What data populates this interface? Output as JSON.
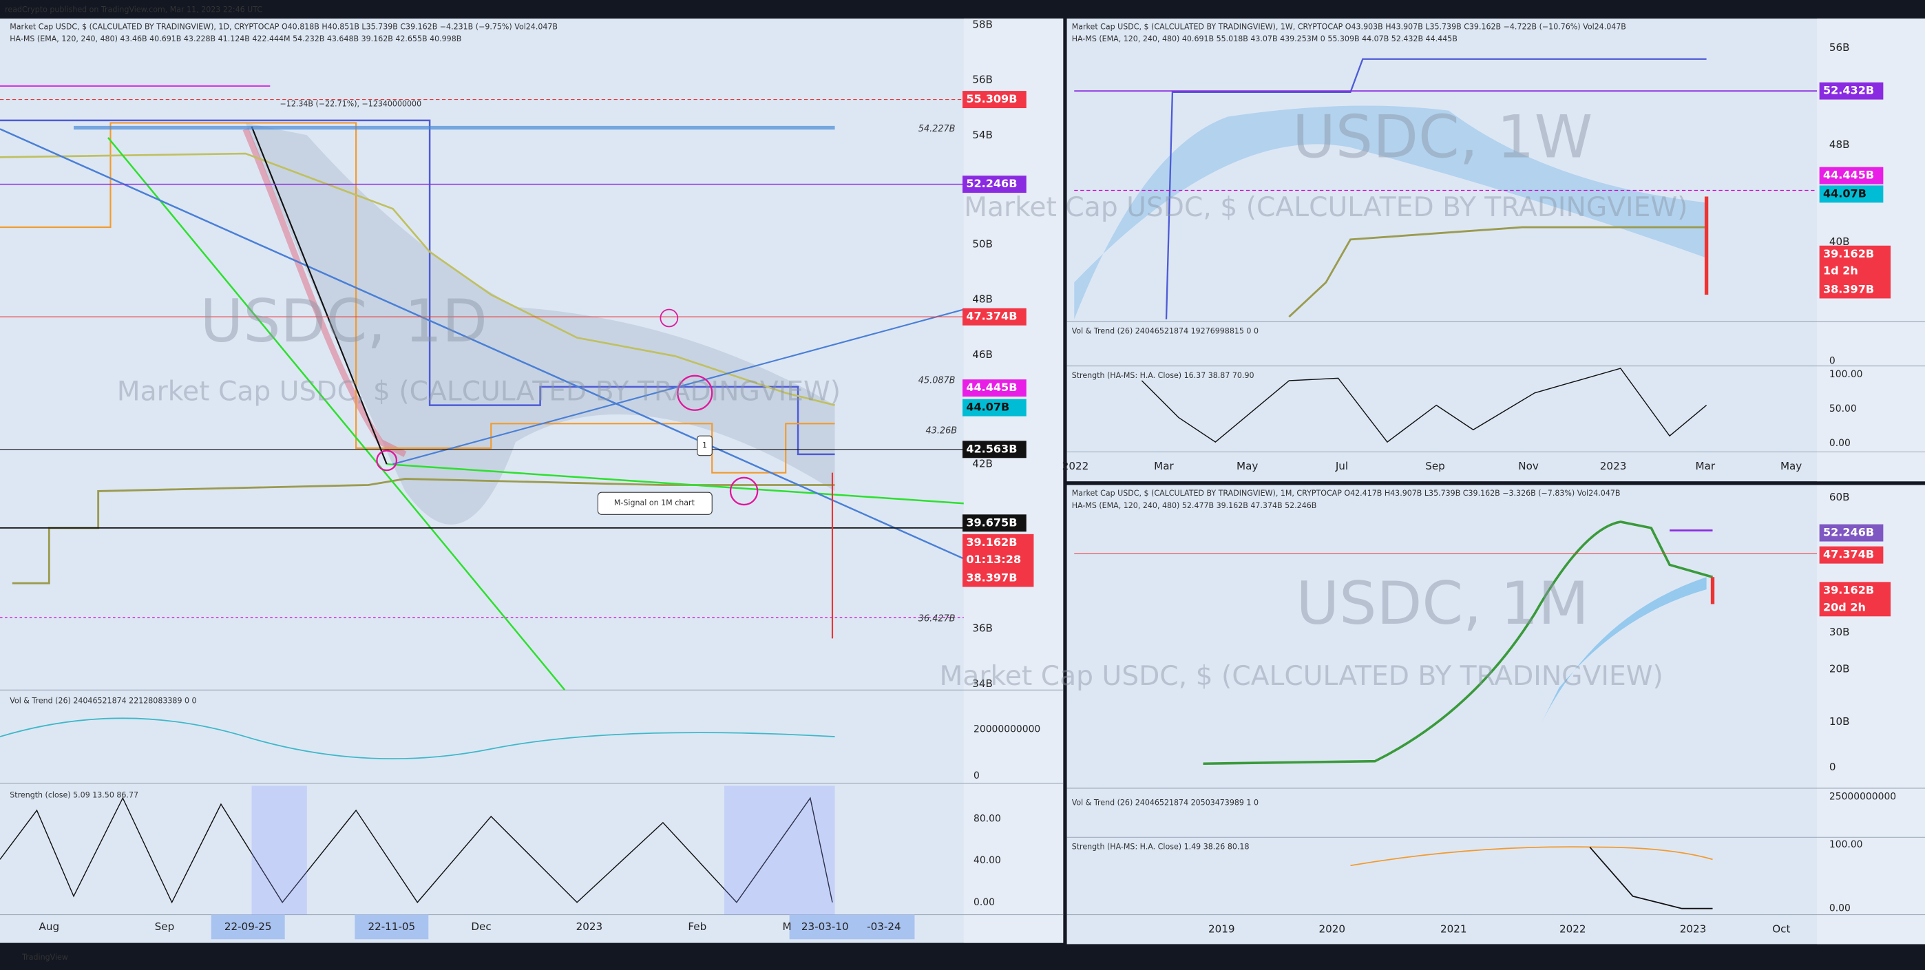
{
  "header": {
    "title": "readCrypto published on TradingView.com, Mar 11, 2023 22:46 UTC"
  },
  "left": {
    "legend": [
      "Market Cap USDC, $ (CALCULATED BY TRADINGVIEW), 1D, CRYPTOCAP  O40.818B  H40.851B  L35.739B  C39.162B  −4.231B (−9.75%)  Vol24.047B",
      "HA-MS (EMA, 120, 240, 480)  43.46B  40.691B  43.228B  41.124B  422.444M  54.232B  43.648B  39.162B  42.655B  40.998B"
    ],
    "watermark": [
      "USDC, 1D",
      "Market Cap USDC, $ (CALCULATED BY TRADINGVIEW)"
    ],
    "price_axis": [
      "58B",
      "56B",
      "54B",
      "50B",
      "48B",
      "46B",
      "42B",
      "36B",
      "34B"
    ],
    "tags": [
      "55.309B",
      "52.246B",
      "47.374B",
      "44.445B",
      "44.07B",
      "42.563B",
      "39.675B"
    ],
    "last_tag": [
      "39.162B",
      "01:13:28",
      "38.397B"
    ],
    "annotations": [
      "54.227B",
      "45.087B",
      "43.26B",
      "36.427B",
      "−12.34B (−22.71%), −12340000000",
      "M-Signal on 1M chart",
      "1"
    ],
    "vol": {
      "legend": "Vol & Trend (26)  24046521874  22128083389  0  0",
      "axis": [
        "20000000000",
        "0"
      ]
    },
    "strength": {
      "legend": "Strength (close)  5.09  13.50  86.77",
      "axis": [
        "80.00",
        "40.00",
        "0.00"
      ]
    },
    "time_axis": [
      "Aug",
      "Sep",
      "22-09-25",
      "22-11-05",
      "Dec",
      "2023",
      "Feb",
      "M",
      "23-03-10",
      "-03-24"
    ]
  },
  "right_top": {
    "legend": [
      "Market Cap USDC, $ (CALCULATED BY TRADINGVIEW), 1W, CRYPTOCAP  O43.903B  H43.907B  L35.739B  C39.162B  −4.722B (−10.76%)  Vol24.047B",
      "HA-MS (EMA, 120, 240, 480)  40.691B  55.018B  43.07B  439.253M  0  55.309B  44.07B  52.432B  44.445B"
    ],
    "watermark": [
      "USDC, 1W",
      "Market Cap USDC, $ (CALCULATED BY TRADINGVIEW)"
    ],
    "price_axis": [
      "56B",
      "48B",
      "40B"
    ],
    "tags": [
      "52.432B",
      "44.445B",
      "44.07B"
    ],
    "last_tag": [
      "39.162B",
      "1d 2h",
      "38.397B"
    ],
    "vol": {
      "legend": "Vol & Trend (26)  24046521874  19276998815  0  0",
      "axis": [
        "0"
      ]
    },
    "strength": {
      "legend": "Strength (HA-MS: H.A. Close)  16.37  38.87  70.90",
      "axis": [
        "100.00",
        "50.00",
        "0.00"
      ]
    },
    "time_axis": [
      "2022",
      "Mar",
      "May",
      "Jul",
      "Sep",
      "Nov",
      "2023",
      "Mar",
      "May"
    ]
  },
  "right_bottom": {
    "legend": [
      "Market Cap USDC, $ (CALCULATED BY TRADINGVIEW), 1M, CRYPTOCAP  O42.417B  H43.907B  L35.739B  C39.162B  −3.326B (−7.83%)  Vol24.047B",
      "HA-MS (EMA, 120, 240, 480)  52.477B  39.162B  47.374B  52.246B"
    ],
    "watermark": [
      "USDC, 1M",
      "Market Cap USDC, $ (CALCULATED BY TRADINGVIEW)"
    ],
    "price_axis": [
      "60B",
      "30B",
      "20B",
      "10B",
      "0"
    ],
    "tags": [
      "52.246B",
      "47.374B"
    ],
    "last_tag": [
      "39.162B",
      "20d 2h"
    ],
    "vol": {
      "legend": "Vol & Trend (26)  24046521874  20503473989  1  0",
      "axis": [
        "25000000000"
      ]
    },
    "strength": {
      "legend": "Strength (HA-MS: H.A. Close)  1.49  38.26  80.18",
      "axis": [
        "100.00",
        "0.00"
      ]
    },
    "time_axis": [
      "2019",
      "2020",
      "2021",
      "2022",
      "2023",
      "Oct"
    ]
  },
  "footer": {
    "brand": "TradingView"
  }
}
